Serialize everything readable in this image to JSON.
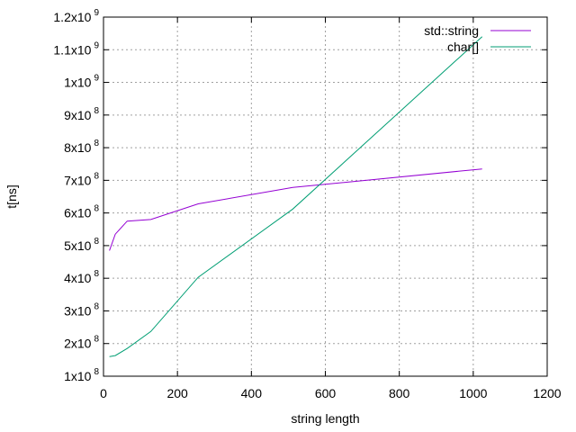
{
  "chart_data": {
    "type": "line",
    "xlabel": "string length",
    "ylabel": "t[ns]",
    "xlim": [
      0,
      1200
    ],
    "ylim": [
      100000000,
      1200000000
    ],
    "grid": true,
    "legend_position": "top-right",
    "x_ticks": [
      {
        "value": 0,
        "label": "0"
      },
      {
        "value": 200,
        "label": "200"
      },
      {
        "value": 400,
        "label": "400"
      },
      {
        "value": 600,
        "label": "600"
      },
      {
        "value": 800,
        "label": "800"
      },
      {
        "value": 1000,
        "label": "1000"
      },
      {
        "value": 1200,
        "label": "1200"
      }
    ],
    "y_ticks": [
      {
        "value": 100000000,
        "mantissa": "1x10",
        "exponent": "8"
      },
      {
        "value": 200000000,
        "mantissa": "2x10",
        "exponent": "8"
      },
      {
        "value": 300000000,
        "mantissa": "3x10",
        "exponent": "8"
      },
      {
        "value": 400000000,
        "mantissa": "4x10",
        "exponent": "8"
      },
      {
        "value": 500000000,
        "mantissa": "5x10",
        "exponent": "8"
      },
      {
        "value": 600000000,
        "mantissa": "6x10",
        "exponent": "8"
      },
      {
        "value": 700000000,
        "mantissa": "7x10",
        "exponent": "8"
      },
      {
        "value": 800000000,
        "mantissa": "8x10",
        "exponent": "8"
      },
      {
        "value": 900000000,
        "mantissa": "9x10",
        "exponent": "8"
      },
      {
        "value": 1000000000,
        "mantissa": "1x10",
        "exponent": "9"
      },
      {
        "value": 1100000000,
        "mantissa": "1.1x10",
        "exponent": "9"
      },
      {
        "value": 1200000000,
        "mantissa": "1.2x10",
        "exponent": "9"
      }
    ],
    "series": [
      {
        "name": "std::string",
        "color": "#9400d3",
        "points": [
          [
            16,
            485000000
          ],
          [
            32,
            535000000
          ],
          [
            64,
            575000000
          ],
          [
            128,
            580000000
          ],
          [
            256,
            628000000
          ],
          [
            512,
            678000000
          ],
          [
            1024,
            735000000
          ]
        ]
      },
      {
        "name": "char[]",
        "color": "#009e73",
        "points": [
          [
            16,
            160000000
          ],
          [
            32,
            163000000
          ],
          [
            64,
            185000000
          ],
          [
            128,
            237000000
          ],
          [
            256,
            403000000
          ],
          [
            512,
            612000000
          ],
          [
            1024,
            1140000000
          ]
        ]
      }
    ]
  }
}
